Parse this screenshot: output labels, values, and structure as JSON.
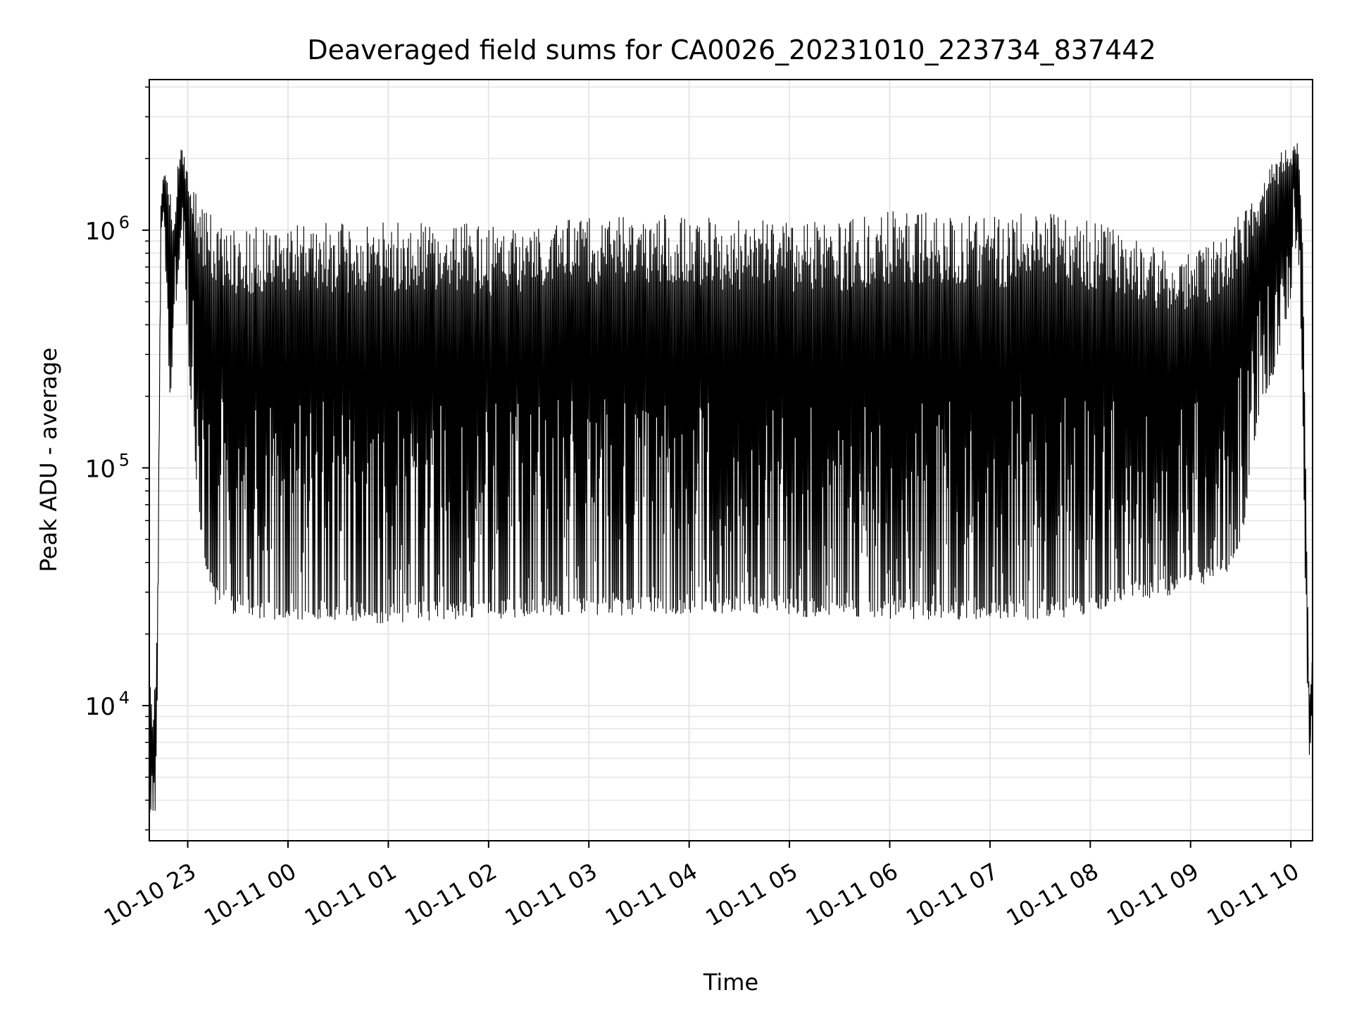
{
  "chart_data": {
    "type": "line",
    "title": "Deaveraged field sums for CA0026_20231010_223734_837442",
    "xlabel": "Time",
    "ylabel": "Peak ADU - average",
    "yscale": "log",
    "ylim": [
      2700,
      4300000
    ],
    "xlim": [
      "2023-10-10 22:37",
      "2023-10-11 10:13"
    ],
    "grid": true,
    "line_color": "#000000",
    "x_ticks": [
      {
        "t": "2023-10-10 23:00",
        "label": "10-10 23"
      },
      {
        "t": "2023-10-11 00:00",
        "label": "10-11 00"
      },
      {
        "t": "2023-10-11 01:00",
        "label": "10-11 01"
      },
      {
        "t": "2023-10-11 02:00",
        "label": "10-11 02"
      },
      {
        "t": "2023-10-11 03:00",
        "label": "10-11 03"
      },
      {
        "t": "2023-10-11 04:00",
        "label": "10-11 04"
      },
      {
        "t": "2023-10-11 05:00",
        "label": "10-11 05"
      },
      {
        "t": "2023-10-11 06:00",
        "label": "10-11 06"
      },
      {
        "t": "2023-10-11 07:00",
        "label": "10-11 07"
      },
      {
        "t": "2023-10-11 08:00",
        "label": "10-11 08"
      },
      {
        "t": "2023-10-11 09:00",
        "label": "10-11 09"
      },
      {
        "t": "2023-10-11 10:00",
        "label": "10-11 10"
      }
    ],
    "y_ticks": [
      {
        "value": 10000,
        "base": "10",
        "exp": "4"
      },
      {
        "value": 100000,
        "base": "10",
        "exp": "5"
      },
      {
        "value": 1000000,
        "base": "10",
        "exp": "6"
      }
    ],
    "series": [
      {
        "x": [
          "2023-10-10 22:37",
          "2023-10-10 22:38",
          "2023-10-10 22:39",
          "2023-10-10 22:40",
          "2023-10-10 22:41",
          "2023-10-10 22:42",
          "2023-10-10 22:44",
          "2023-10-10 22:46",
          "2023-10-10 22:48",
          "2023-10-10 22:50",
          "2023-10-10 22:52",
          "2023-10-10 22:54",
          "2023-10-10 22:56",
          "2023-10-10 22:58",
          "2023-10-10 23:00",
          "2023-10-10 23:04",
          "2023-10-10 23:08",
          "2023-10-10 23:12",
          "2023-10-10 23:16",
          "2023-10-10 23:20",
          "2023-10-10 23:30",
          "2023-10-10 23:40",
          "2023-10-10 23:50",
          "2023-10-11 00:00",
          "2023-10-11 00:30",
          "2023-10-11 01:00",
          "2023-10-11 01:30",
          "2023-10-11 02:00",
          "2023-10-11 02:30",
          "2023-10-11 03:00",
          "2023-10-11 03:30",
          "2023-10-11 04:00",
          "2023-10-11 04:30",
          "2023-10-11 05:00",
          "2023-10-11 05:30",
          "2023-10-11 06:00",
          "2023-10-11 06:30",
          "2023-10-11 07:00",
          "2023-10-11 07:30",
          "2023-10-11 08:00",
          "2023-10-11 08:14",
          "2023-10-11 08:30",
          "2023-10-11 09:00",
          "2023-10-11 09:20",
          "2023-10-11 09:30",
          "2023-10-11 09:40",
          "2023-10-11 09:50",
          "2023-10-11 10:00",
          "2023-10-11 10:02",
          "2023-10-11 10:05",
          "2023-10-11 10:07",
          "2023-10-11 10:09",
          "2023-10-11 10:11",
          "2023-10-11 10:13"
        ],
        "upper": [
          16000,
          12000,
          9000,
          12000,
          13000,
          30000,
          1400000,
          1800000,
          1900000,
          1400000,
          1000000,
          2100000,
          2200000,
          2100000,
          1800000,
          1500000,
          1300000,
          1200000,
          1150000,
          1100000,
          1050000,
          1050000,
          1080000,
          1080000,
          1080000,
          1100000,
          1100000,
          1050000,
          1100000,
          1150000,
          1200000,
          1150000,
          1100000,
          1100000,
          1100000,
          1200000,
          1200000,
          1150000,
          1200000,
          1100000,
          1050000,
          900000,
          800000,
          1000000,
          1200000,
          1400000,
          2000000,
          2300000,
          2600000,
          2200000,
          1000000,
          100000,
          10000,
          17000
        ],
        "lower": [
          3500,
          3500,
          3500,
          3500,
          3500,
          15000,
          1000000,
          1200000,
          200000,
          200000,
          500000,
          500000,
          1000000,
          800000,
          300000,
          110000,
          50000,
          35000,
          27000,
          25000,
          24000,
          23000,
          23000,
          23000,
          23000,
          22000,
          23000,
          23000,
          24000,
          24000,
          24000,
          24000,
          24000,
          23000,
          24000,
          23000,
          23000,
          23000,
          23000,
          24000,
          26000,
          28000,
          30000,
          35000,
          45000,
          150000,
          250000,
          500000,
          900000,
          700000,
          200000,
          20000,
          6000,
          9000
        ]
      }
    ]
  }
}
